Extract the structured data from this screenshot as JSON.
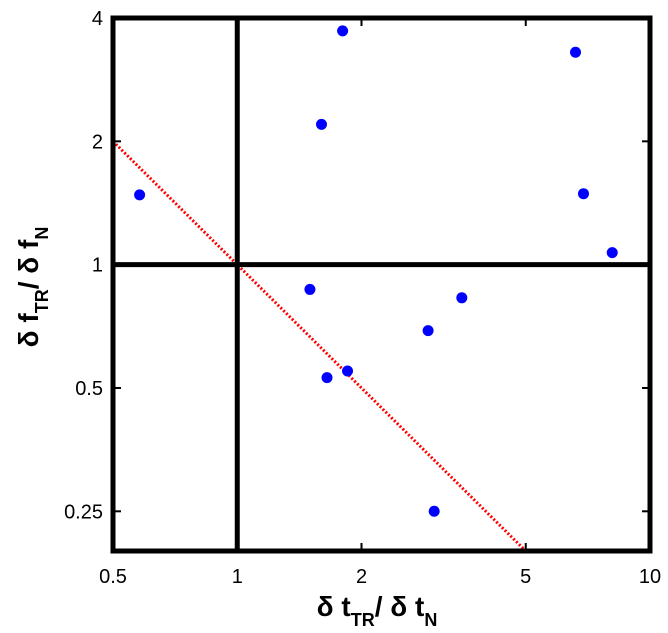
{
  "chart_data": {
    "type": "scatter",
    "title": "",
    "xlabel": {
      "parts": [
        {
          "text": "δ t"
        },
        {
          "text": "TR",
          "sub": true
        },
        {
          "text": "/ δ t"
        },
        {
          "text": "N",
          "sub": true
        }
      ]
    },
    "ylabel": {
      "parts": [
        {
          "text": "δ f"
        },
        {
          "text": "TR",
          "sub": true
        },
        {
          "text": "/ δ f"
        },
        {
          "text": "N",
          "sub": true
        }
      ]
    },
    "xscale": "log",
    "yscale": "log",
    "xlim": [
      0.5,
      10
    ],
    "ylim": [
      0.2,
      4
    ],
    "xticks": [
      {
        "value": 0.5,
        "label": "0.5"
      },
      {
        "value": 1,
        "label": "1"
      },
      {
        "value": 2,
        "label": "2"
      },
      {
        "value": 5,
        "label": "5"
      },
      {
        "value": 10,
        "label": "10"
      }
    ],
    "yticks": [
      {
        "value": 0.25,
        "label": "0.25"
      },
      {
        "value": 0.5,
        "label": "0.5"
      },
      {
        "value": 1,
        "label": "1"
      },
      {
        "value": 2,
        "label": "2"
      },
      {
        "value": 4,
        "label": "4"
      }
    ],
    "grid": false,
    "legend": "none",
    "reference_lines": {
      "vertical_x": 1,
      "horizontal_y": 1,
      "color": "#000000"
    },
    "trend_line": {
      "style": "dotted",
      "color": "#ff0000",
      "points": [
        {
          "x": 0.5,
          "y": 2.0
        },
        {
          "x": 5.0,
          "y": 0.2
        }
      ]
    },
    "points": [
      {
        "x": 0.58,
        "y": 1.48
      },
      {
        "x": 1.5,
        "y": 0.87
      },
      {
        "x": 1.6,
        "y": 2.2
      },
      {
        "x": 1.65,
        "y": 0.53
      },
      {
        "x": 1.8,
        "y": 3.72
      },
      {
        "x": 1.85,
        "y": 0.55
      },
      {
        "x": 2.9,
        "y": 0.69
      },
      {
        "x": 3.0,
        "y": 0.25
      },
      {
        "x": 3.5,
        "y": 0.83
      },
      {
        "x": 6.6,
        "y": 3.3
      },
      {
        "x": 6.9,
        "y": 1.49
      },
      {
        "x": 8.1,
        "y": 1.07
      }
    ],
    "point_color": "#0000ff"
  }
}
